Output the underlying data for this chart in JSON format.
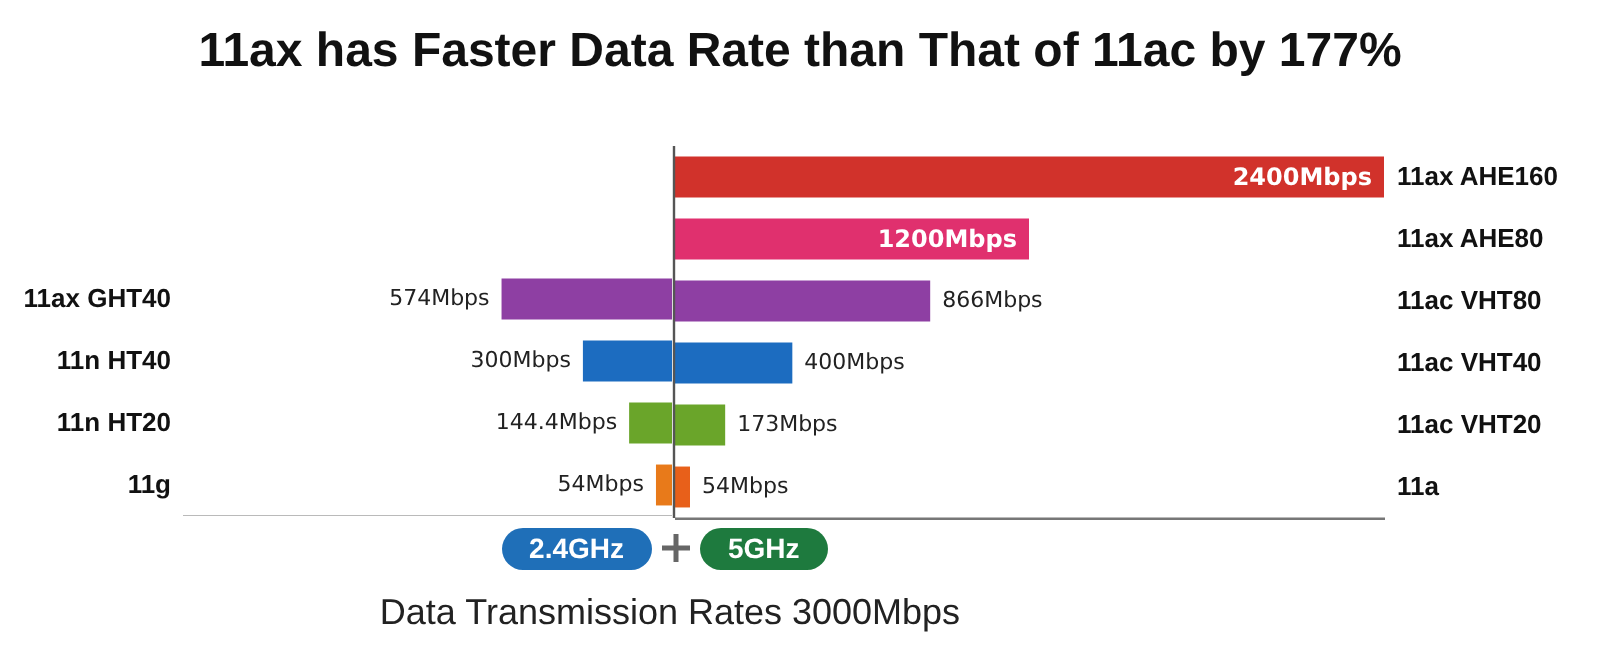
{
  "chart_data": [
    {
      "type": "bar",
      "orientation": "horizontal",
      "title": "11ax has Faster Data Rate than That of 11ac by 177%",
      "xlabel": "2.4GHz",
      "categories": [
        null,
        null,
        "11ax GHT40",
        "11n HT40",
        "11n HT20",
        "11g"
      ],
      "values": [
        null,
        null,
        574,
        300,
        144.4,
        54
      ],
      "colors": [
        null,
        null,
        "#8e3fa3",
        "#1c6cc0",
        "#6aa52a",
        "#e87a1a"
      ],
      "value_labels": [
        null,
        null,
        "574Mbps",
        "300Mbps",
        "144.4Mbps",
        "54Mbps"
      ],
      "xlim": [
        1650,
        0
      ],
      "tick_labels": "y"
    },
    {
      "type": "bar",
      "orientation": "horizontal",
      "xlabel": "5GHz",
      "categories": [
        "11ax AHE160",
        "11ax AHE80",
        "11ac VHT80",
        "11ac VHT40",
        "11ac VHT20",
        "11a"
      ],
      "values": [
        2400,
        1200,
        866,
        400,
        173,
        54
      ],
      "colors": [
        "#d1322b",
        "#e0306e",
        "#8e3fa3",
        "#1c6cc0",
        "#6aa52a",
        "#e8601a"
      ],
      "value_labels": [
        "2400Mbps",
        "1200Mbps",
        "866Mbps",
        "400Mbps",
        "173Mbps",
        "54Mbps"
      ],
      "xlim": [
        0,
        2400
      ],
      "tick_labels": "y",
      "ref_lines": [
        {
          "axis": "x",
          "value": 0,
          "color": "#555555"
        }
      ],
      "annotations": [
        "Data Transmission Rates 3000Mbps"
      ]
    }
  ]
}
